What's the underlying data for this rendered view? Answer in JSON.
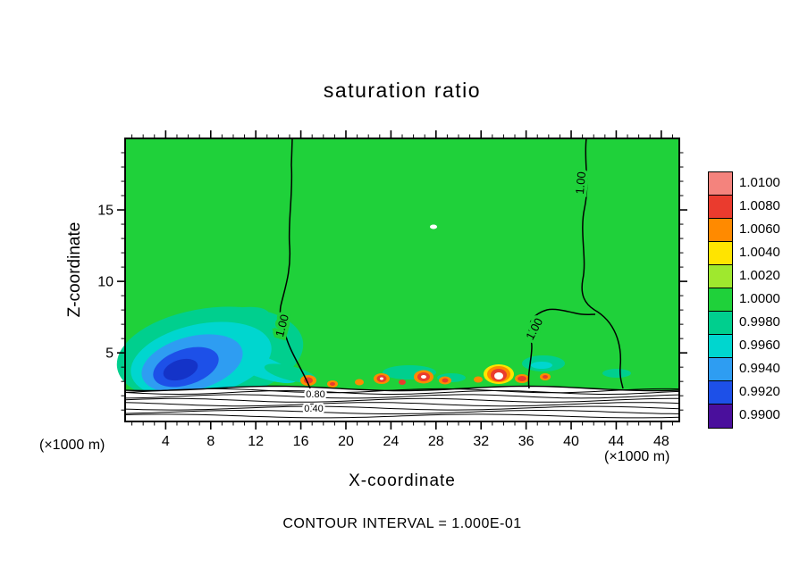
{
  "figure": {
    "title": "saturation ratio",
    "xlabel": "X-coordinate",
    "ylabel": "Z-coordinate",
    "x_unit": "(×1000 m)",
    "caption": "CONTOUR INTERVAL = 1.000E-01"
  },
  "chart_data": {
    "type": "heatmap",
    "title": "saturation ratio",
    "xlabel": "X-coordinate",
    "ylabel": "Z-coordinate",
    "axis_unit": "(×1000 m)",
    "x_range": [
      0.4,
      49.6
    ],
    "y_range": [
      0.2,
      20.0
    ],
    "x_ticks": [
      4,
      8,
      12,
      16,
      20,
      24,
      28,
      32,
      36,
      40,
      44,
      48
    ],
    "y_ticks": [
      5,
      10,
      15
    ],
    "contour_interval": 0.1,
    "contour_interval_label": "CONTOUR INTERVAL = 1.000E-01",
    "colorbar": {
      "labels_top_to_bottom": [
        "1.0100",
        "1.0080",
        "1.0060",
        "1.0040",
        "1.0020",
        "1.0000",
        "0.9980",
        "0.9960",
        "0.9940",
        "0.9920",
        "0.9900"
      ],
      "colors_top_to_bottom": [
        "#f4837d",
        "#ea3b2e",
        "#ff8a00",
        "#ffe400",
        "#9fe82e",
        "#1fd13a",
        "#00cf8e",
        "#00d6cf",
        "#2e9df2",
        "#1d50e8",
        "#4a0f9c"
      ]
    },
    "contour_labels": {
      "left_vertical": "1.00",
      "upper_right": "1.00",
      "mid_right": "1.00",
      "surface_upper": "0.80",
      "surface_lower": "0.40"
    },
    "field_description": {
      "background_value": 1.0,
      "features": [
        {
          "region": "subsaturated plume lower-left",
          "x": [
            1,
            13
          ],
          "z": [
            2,
            7
          ],
          "value_range": [
            0.992,
            0.999
          ]
        },
        {
          "region": "supersaturated spots near boundary-layer top",
          "x": [
            16,
            37
          ],
          "z": [
            2.5,
            4
          ],
          "value_range": [
            1.002,
            1.01
          ]
        },
        {
          "region": "surface layer with tightly packed contours",
          "x": [
            0,
            50
          ],
          "z": [
            0,
            2.5
          ],
          "value_range": [
            0.1,
            0.9
          ]
        }
      ]
    }
  }
}
